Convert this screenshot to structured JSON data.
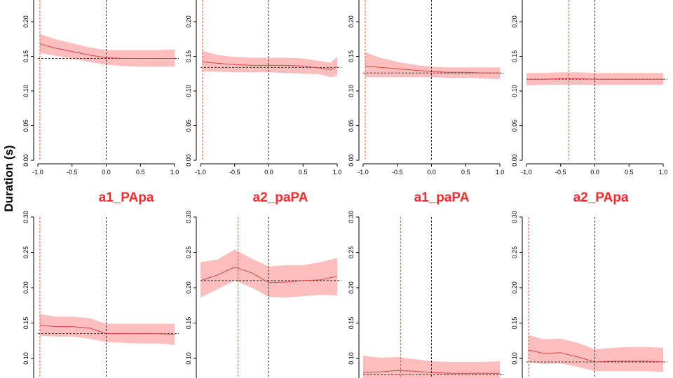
{
  "figure": {
    "ylabel": "Duration (s)",
    "colors": {
      "band": "#ffb3b3",
      "line": "#d94545",
      "red_vline": "#e05a3a",
      "black_dash": "#333333",
      "title": "#ff2a2a"
    }
  },
  "chart_data": [
    {
      "type": "line",
      "title": "",
      "xlim": [
        -1,
        1
      ],
      "ylim": [
        0,
        0.2
      ],
      "xticks": [
        "-1.0",
        "-0.5",
        "0.0",
        "0.5",
        "1.0"
      ],
      "yticks": [
        "0.00",
        "0.05",
        "0.10",
        "0.15",
        "0.20"
      ],
      "red_vline_x": -0.97,
      "black_vline_x": 0.0,
      "hline_y": 0.147,
      "series": [
        {
          "x": [
            -0.97,
            -0.75,
            -0.5,
            -0.25,
            0.0,
            0.25,
            0.5,
            0.75,
            1.0
          ],
          "y": [
            0.168,
            0.162,
            0.157,
            0.152,
            0.148,
            0.147,
            0.147,
            0.147,
            0.147
          ],
          "lower": [
            0.155,
            0.151,
            0.147,
            0.142,
            0.138,
            0.136,
            0.135,
            0.135,
            0.135
          ],
          "upper": [
            0.182,
            0.175,
            0.169,
            0.163,
            0.159,
            0.159,
            0.159,
            0.159,
            0.16
          ]
        }
      ]
    },
    {
      "type": "line",
      "title": "",
      "xlim": [
        -1,
        1
      ],
      "ylim": [
        0,
        0.2
      ],
      "xticks": [
        "-1.0",
        "-0.5",
        "0.0",
        "0.5",
        "1.0"
      ],
      "yticks": [
        "0.00",
        "0.05",
        "0.10",
        "0.15",
        "0.20"
      ],
      "red_vline_x": -0.97,
      "black_vline_x": 0.0,
      "hline_y": 0.134,
      "series": [
        {
          "x": [
            -0.97,
            -0.75,
            -0.5,
            -0.25,
            0.0,
            0.25,
            0.5,
            0.75,
            0.9,
            1.0
          ],
          "y": [
            0.142,
            0.14,
            0.138,
            0.137,
            0.137,
            0.137,
            0.136,
            0.133,
            0.131,
            0.135
          ],
          "lower": [
            0.128,
            0.128,
            0.127,
            0.127,
            0.127,
            0.126,
            0.125,
            0.124,
            0.12,
            0.122
          ],
          "upper": [
            0.158,
            0.152,
            0.149,
            0.148,
            0.148,
            0.148,
            0.147,
            0.143,
            0.141,
            0.149
          ]
        }
      ]
    },
    {
      "type": "line",
      "title": "",
      "xlim": [
        -1,
        1
      ],
      "ylim": [
        0,
        0.2
      ],
      "xticks": [
        "-1.0",
        "-0.5",
        "0.0",
        "0.5",
        "1.0"
      ],
      "yticks": [
        "0.00",
        "0.05",
        "0.10",
        "0.15",
        "0.20"
      ],
      "red_vline_x": -0.97,
      "black_vline_x": 0.0,
      "hline_y": 0.126,
      "series": [
        {
          "x": [
            -0.97,
            -0.75,
            -0.5,
            -0.25,
            0.0,
            0.25,
            0.5,
            0.75,
            1.0
          ],
          "y": [
            0.136,
            0.134,
            0.132,
            0.13,
            0.128,
            0.127,
            0.127,
            0.126,
            0.126
          ],
          "lower": [
            0.12,
            0.12,
            0.12,
            0.12,
            0.12,
            0.119,
            0.119,
            0.118,
            0.117
          ],
          "upper": [
            0.156,
            0.148,
            0.142,
            0.138,
            0.135,
            0.134,
            0.134,
            0.134,
            0.134
          ]
        }
      ]
    },
    {
      "type": "line",
      "title": "",
      "xlim": [
        -1,
        1
      ],
      "ylim": [
        0,
        0.2
      ],
      "xticks": [
        "-1.0",
        "-0.5",
        "0.0",
        "0.5",
        "1.0"
      ],
      "yticks": [
        "0.00",
        "0.05",
        "0.10",
        "0.15",
        "0.20"
      ],
      "red_vline_x": -0.38,
      "black_vline_x": 0.0,
      "hline_y": 0.117,
      "series": [
        {
          "x": [
            -1.0,
            -0.75,
            -0.5,
            -0.25,
            0.0,
            0.25,
            0.5,
            0.75,
            1.0
          ],
          "y": [
            0.117,
            0.117,
            0.118,
            0.118,
            0.117,
            0.117,
            0.117,
            0.117,
            0.117
          ],
          "lower": [
            0.108,
            0.109,
            0.109,
            0.109,
            0.109,
            0.109,
            0.109,
            0.109,
            0.109
          ],
          "upper": [
            0.126,
            0.126,
            0.127,
            0.127,
            0.126,
            0.126,
            0.126,
            0.126,
            0.126
          ]
        }
      ]
    },
    {
      "type": "line",
      "title": "a1_PApa",
      "xlim": [
        -1,
        1
      ],
      "ylim": [
        0.06,
        0.3
      ],
      "xticks": [],
      "yticks": [
        "0.10",
        "0.15",
        "0.20",
        "0.25",
        "0.30"
      ],
      "red_vline_x": -0.97,
      "black_vline_x": 0.0,
      "hline_y": 0.135,
      "series": [
        {
          "x": [
            -0.97,
            -0.75,
            -0.5,
            -0.25,
            0.0,
            0.25,
            0.5,
            0.75,
            1.0
          ],
          "y": [
            0.147,
            0.145,
            0.145,
            0.143,
            0.135,
            0.135,
            0.135,
            0.135,
            0.134
          ],
          "lower": [
            0.132,
            0.131,
            0.131,
            0.128,
            0.123,
            0.122,
            0.121,
            0.121,
            0.119
          ],
          "upper": [
            0.163,
            0.159,
            0.159,
            0.157,
            0.149,
            0.149,
            0.149,
            0.149,
            0.149
          ]
        }
      ]
    },
    {
      "type": "line",
      "title": "a2_paPA",
      "xlim": [
        -1,
        1
      ],
      "ylim": [
        0.06,
        0.3
      ],
      "xticks": [],
      "yticks": [
        "0.10",
        "0.15",
        "0.20",
        "0.25",
        "0.30"
      ],
      "red_vline_x": -0.45,
      "black_vline_x": 0.0,
      "hline_y": 0.21,
      "series": [
        {
          "x": [
            -1.0,
            -0.75,
            -0.5,
            -0.25,
            0.0,
            0.25,
            0.5,
            0.75,
            1.0
          ],
          "y": [
            0.21,
            0.218,
            0.229,
            0.221,
            0.207,
            0.208,
            0.21,
            0.211,
            0.216
          ],
          "lower": [
            0.186,
            0.198,
            0.21,
            0.2,
            0.187,
            0.186,
            0.188,
            0.19,
            0.189
          ],
          "upper": [
            0.236,
            0.24,
            0.254,
            0.241,
            0.23,
            0.232,
            0.232,
            0.236,
            0.242
          ]
        }
      ]
    },
    {
      "type": "line",
      "title": "a1_paPA",
      "xlim": [
        -1,
        1
      ],
      "ylim": [
        0.06,
        0.3
      ],
      "xticks": [],
      "yticks": [
        "0.10",
        "0.15",
        "0.20",
        "0.25",
        "0.30"
      ],
      "red_vline_x": -0.45,
      "black_vline_x": 0.0,
      "hline_y": 0.077,
      "series": [
        {
          "x": [
            -1.0,
            -0.75,
            -0.5,
            -0.25,
            0.0,
            0.25,
            0.5,
            0.75,
            1.0
          ],
          "y": [
            0.08,
            0.081,
            0.083,
            0.082,
            0.08,
            0.079,
            0.079,
            0.079,
            0.079
          ],
          "lower": [
            0.065,
            0.066,
            0.068,
            0.067,
            0.066,
            0.065,
            0.065,
            0.065,
            0.065
          ],
          "upper": [
            0.104,
            0.101,
            0.102,
            0.099,
            0.096,
            0.095,
            0.095,
            0.095,
            0.096
          ]
        }
      ]
    },
    {
      "type": "line",
      "title": "a2_PApa",
      "xlim": [
        -1,
        1
      ],
      "ylim": [
        0.06,
        0.3
      ],
      "xticks": [],
      "yticks": [
        "0.10",
        "0.15",
        "0.20",
        "0.25",
        "0.30"
      ],
      "red_vline_x": -0.97,
      "black_vline_x": 0.0,
      "hline_y": 0.095,
      "series": [
        {
          "x": [
            -0.97,
            -0.75,
            -0.5,
            -0.25,
            0.0,
            0.25,
            0.5,
            0.75,
            1.0
          ],
          "y": [
            0.112,
            0.107,
            0.108,
            0.102,
            0.095,
            0.096,
            0.096,
            0.096,
            0.095
          ],
          "lower": [
            0.095,
            0.092,
            0.093,
            0.088,
            0.082,
            0.082,
            0.082,
            0.082,
            0.081
          ],
          "upper": [
            0.133,
            0.127,
            0.128,
            0.122,
            0.113,
            0.115,
            0.116,
            0.116,
            0.115
          ]
        }
      ]
    }
  ]
}
